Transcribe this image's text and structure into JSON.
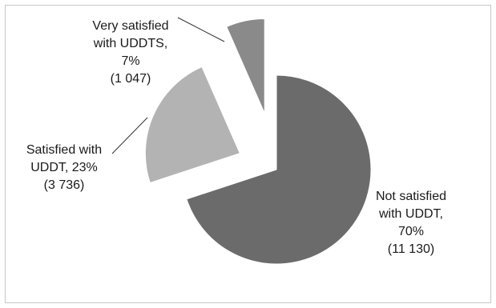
{
  "chart_data": {
    "type": "pie",
    "exploded": true,
    "slices": [
      {
        "value": 11130,
        "percent": 70,
        "color": "#6b6b6b",
        "label_lines": [
          "Not satisfied",
          "with UDDT,",
          "70%",
          "(11 130)"
        ]
      },
      {
        "value": 3736,
        "percent": 23,
        "color": "#b3b3b3",
        "label_lines": [
          "Satisfied with",
          "UDDT, 23%",
          "(3 736)"
        ]
      },
      {
        "value": 1047,
        "percent": 7,
        "color": "#8a8a8a",
        "label_lines": [
          "Very satisfied",
          "with UDDTS,",
          "7%",
          "(1 047)"
        ]
      }
    ]
  }
}
